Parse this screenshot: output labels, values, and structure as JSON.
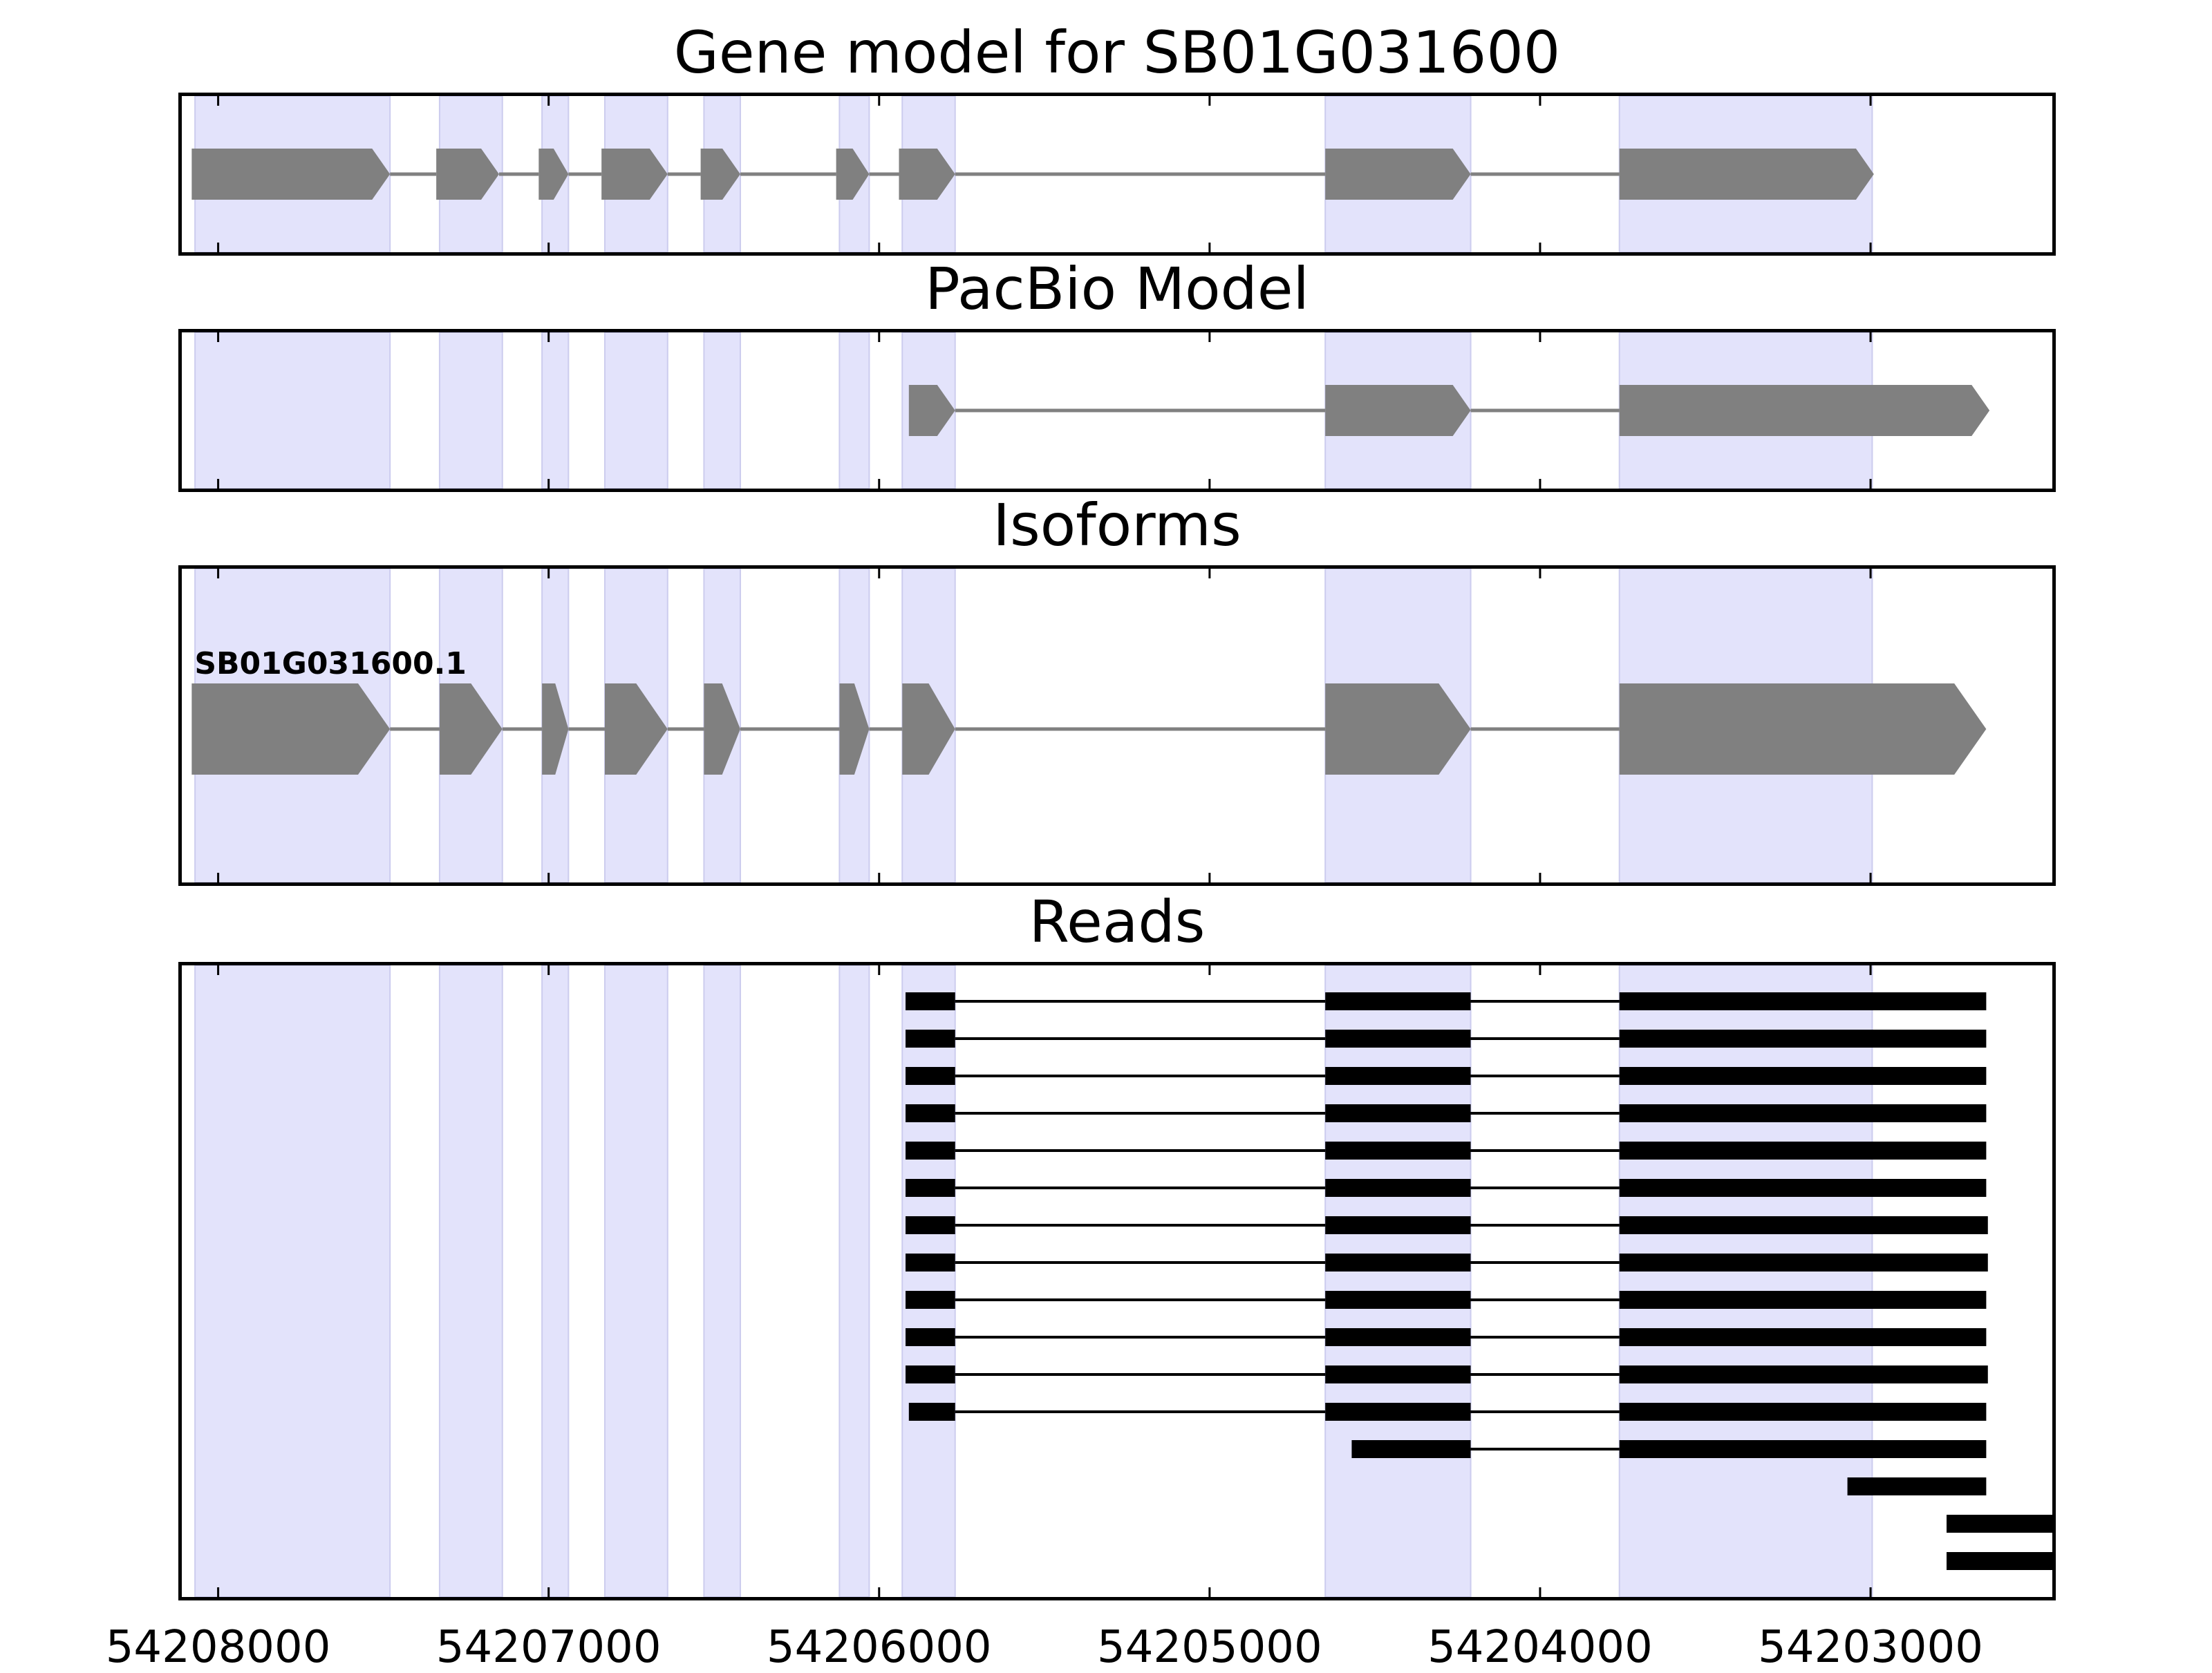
{
  "chart_data": {
    "type": "gene_model",
    "axis": {
      "xlim": [
        54208110,
        54202450
      ],
      "ticks": [
        54208000,
        54207000,
        54206000,
        54205000,
        54204000,
        54203000
      ],
      "tick_labels": [
        "54208000",
        "54207000",
        "54206000",
        "54205000",
        "54204000",
        "54203000"
      ]
    },
    "colors": {
      "shade": "#e3e3fb",
      "shade_edge": "#ccccee",
      "feature": "#808080",
      "read": "#000000"
    },
    "exon_regions": [
      [
        54208070,
        54207480
      ],
      [
        54207330,
        54207140
      ],
      [
        54207020,
        54206940
      ],
      [
        54206830,
        54206640
      ],
      [
        54206530,
        54206420
      ],
      [
        54206120,
        54206030
      ],
      [
        54205930,
        54205770
      ],
      [
        54204650,
        54204210
      ],
      [
        54203760,
        54202995
      ]
    ],
    "panels": [
      {
        "title": "Gene model for SB01G031600",
        "kind": "gene",
        "models": [
          {
            "label": "",
            "exons": [
              [
                54208080,
                54207480
              ],
              [
                54207340,
                54207150
              ],
              [
                54207030,
                54206940
              ],
              [
                54206840,
                54206640
              ],
              [
                54206540,
                54206420
              ],
              [
                54206130,
                54206030
              ],
              [
                54205940,
                54205770
              ],
              [
                54204650,
                54204210
              ],
              [
                54203760,
                54202990
              ]
            ]
          }
        ]
      },
      {
        "title": "PacBio Model",
        "kind": "gene",
        "models": [
          {
            "label": "",
            "exons": [
              [
                54205910,
                54205770
              ],
              [
                54204650,
                54204210
              ],
              [
                54203760,
                54202640
              ]
            ]
          }
        ]
      },
      {
        "title": "Isoforms",
        "kind": "gene",
        "models": [
          {
            "label": "SB01G031600.1",
            "exons": [
              [
                54208080,
                54207480
              ],
              [
                54207330,
                54207140
              ],
              [
                54207020,
                54206940
              ],
              [
                54206830,
                54206640
              ],
              [
                54206530,
                54206420
              ],
              [
                54206120,
                54206030
              ],
              [
                54205930,
                54205770
              ],
              [
                54204650,
                54204210
              ],
              [
                54203760,
                54202650
              ]
            ]
          }
        ]
      },
      {
        "title": "Reads",
        "kind": "reads",
        "reads": [
          [
            [
              54205920,
              54205770
            ],
            [
              54204650,
              54204210
            ],
            [
              54203760,
              54202650
            ]
          ],
          [
            [
              54205920,
              54205770
            ],
            [
              54204650,
              54204210
            ],
            [
              54203760,
              54202650
            ]
          ],
          [
            [
              54205920,
              54205770
            ],
            [
              54204650,
              54204210
            ],
            [
              54203760,
              54202650
            ]
          ],
          [
            [
              54205920,
              54205770
            ],
            [
              54204650,
              54204210
            ],
            [
              54203760,
              54202650
            ]
          ],
          [
            [
              54205920,
              54205770
            ],
            [
              54204650,
              54204210
            ],
            [
              54203760,
              54202650
            ]
          ],
          [
            [
              54205920,
              54205770
            ],
            [
              54204650,
              54204210
            ],
            [
              54203760,
              54202650
            ]
          ],
          [
            [
              54205920,
              54205770
            ],
            [
              54204650,
              54204210
            ],
            [
              54203760,
              54202645
            ]
          ],
          [
            [
              54205920,
              54205770
            ],
            [
              54204650,
              54204210
            ],
            [
              54203760,
              54202645
            ]
          ],
          [
            [
              54205920,
              54205770
            ],
            [
              54204650,
              54204210
            ],
            [
              54203760,
              54202650
            ]
          ],
          [
            [
              54205920,
              54205770
            ],
            [
              54204650,
              54204210
            ],
            [
              54203760,
              54202650
            ]
          ],
          [
            [
              54205920,
              54205770
            ],
            [
              54204650,
              54204210
            ],
            [
              54203760,
              54202645
            ]
          ],
          [
            [
              54205910,
              54205770
            ],
            [
              54204650,
              54204210
            ],
            [
              54203760,
              54202650
            ]
          ],
          [
            [
              54204570,
              54204210
            ],
            [
              54203760,
              54202650
            ]
          ],
          [
            [
              54203070,
              54202650
            ]
          ],
          [
            [
              54202770,
              54202450
            ]
          ],
          [
            [
              54202770,
              54202450
            ]
          ]
        ]
      }
    ]
  }
}
